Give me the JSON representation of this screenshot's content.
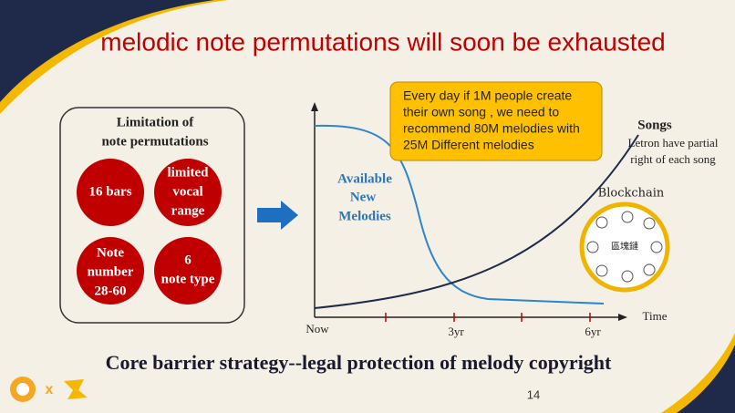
{
  "title": "melodic note permutations will soon be exhausted",
  "limitation": {
    "heading": [
      "Limitation of",
      "note permutations"
    ],
    "factors": [
      {
        "lines": [
          "16 bars"
        ]
      },
      {
        "lines": [
          "limited",
          "vocal",
          "range"
        ]
      },
      {
        "lines": [
          "Note",
          "number",
          "28-60"
        ]
      },
      {
        "lines": [
          "6",
          "note type"
        ]
      }
    ]
  },
  "callout": [
    "Every day if 1M people create",
    "their own song , we need to",
    "recommend 80M melodies with",
    "25M Different melodies"
  ],
  "available_label": [
    "Available",
    "New",
    "Melodies"
  ],
  "songs": {
    "title": "Songs",
    "note": [
      "Letron have partial",
      "right of each song"
    ]
  },
  "blockchain": {
    "title": "Blockchain",
    "icon_label": "區塊鏈"
  },
  "x_axis": {
    "labels": [
      "Now",
      "3yr",
      "6yr"
    ],
    "title": "Time"
  },
  "footer": "Core barrier strategy--legal protection of melody copyright",
  "logo_separator": "x",
  "page_number": "14"
}
